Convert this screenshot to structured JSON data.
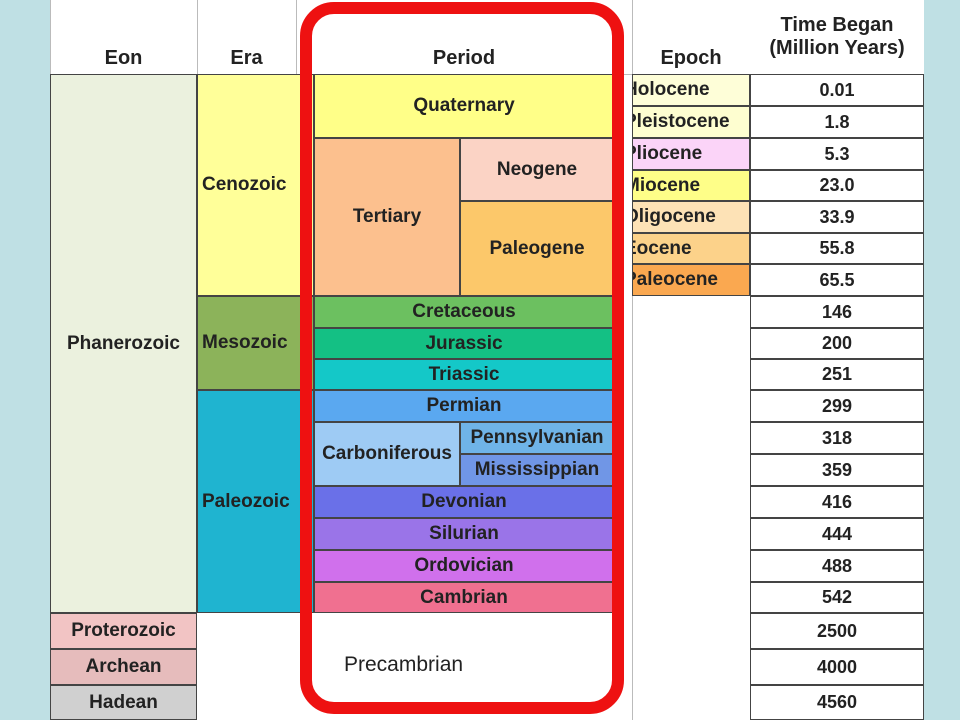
{
  "headers": {
    "eon": "Eon",
    "era": "Era",
    "period": "Period",
    "epoch": "Epoch",
    "time_line1": "Time Began",
    "time_line2": "(Million Years)"
  },
  "eons": {
    "phanerozoic": "Phanerozoic",
    "proterozoic": "Proterozoic",
    "archean": "Archean",
    "hadean": "Hadean"
  },
  "eras": {
    "cenozoic": "Cenozoic",
    "mesozoic": "Mesozoic",
    "paleozoic": "Paleozoic"
  },
  "periods": {
    "quaternary": "Quaternary",
    "tertiary": "Tertiary",
    "neogene": "Neogene",
    "paleogene": "Paleogene",
    "cretaceous": "Cretaceous",
    "jurassic": "Jurassic",
    "triassic": "Triassic",
    "permian": "Permian",
    "carboniferous": "Carboniferous",
    "pennsylvanian": "Pennsylvanian",
    "mississippian": "Mississippian",
    "devonian": "Devonian",
    "silurian": "Silurian",
    "ordovician": "Ordovician",
    "cambrian": "Cambrian",
    "precambrian": "Precambrian"
  },
  "epochs": {
    "holocene": "Holocene",
    "pleistocene": "Pleistocene",
    "pliocene": "Pliocene",
    "miocene": "Miocene",
    "oligocene": "Oligocene",
    "eocene": "Eocene",
    "paleocene": "Paleocene"
  },
  "times": [
    "0.01",
    "1.8",
    "5.3",
    "23.0",
    "33.9",
    "55.8",
    "65.5",
    "146",
    "200",
    "251",
    "299",
    "318",
    "359",
    "416",
    "444",
    "488",
    "542",
    "2500",
    "4000",
    "4560"
  ],
  "colors": {
    "phanerozoic": "#ebf1de",
    "proterozoic": "#f2c4c4",
    "archean": "#e6bcbc",
    "hadean": "#d0d0d0",
    "cenozoic": "#ffff99",
    "mesozoic": "#8cb35a",
    "paleozoic": "#1fb4d0",
    "quaternary": "#ffff88",
    "tertiary": "#fcc08e",
    "neogene": "#fbd3c5",
    "paleogene": "#fcc86a",
    "cretaceous": "#6cc060",
    "jurassic": "#14c084",
    "triassic": "#14c8c8",
    "permian": "#5aa8f0",
    "carboniferous": "#9ecbf4",
    "pennsylvanian": "#6fb4e8",
    "mississippian": "#7096e6",
    "devonian": "#6a70e8",
    "silurian": "#9a74e8",
    "ordovician": "#d070ec",
    "cambrian": "#f07090",
    "holocene": "#fefed8",
    "pleistocene": "#fefed0",
    "pliocene": "#fbd4f8",
    "miocene": "#fefe88",
    "oligocene": "#fde2b6",
    "eocene": "#fcd28a",
    "paleocene": "#faa850",
    "highlight": "#ee1111"
  }
}
